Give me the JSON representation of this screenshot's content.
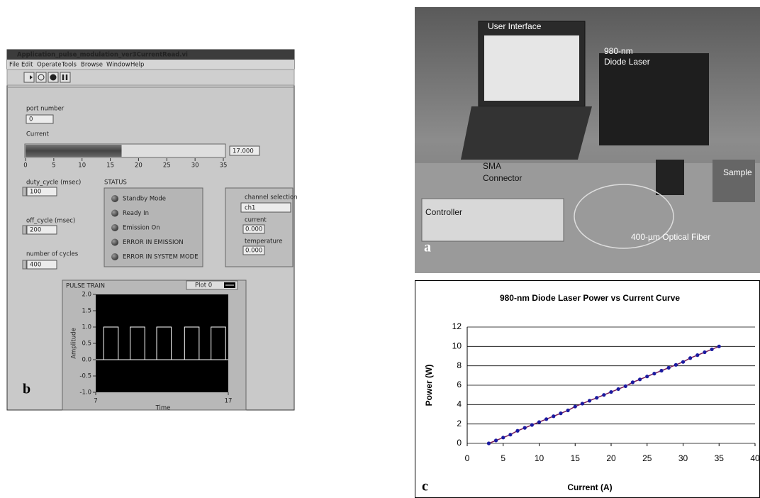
{
  "ui": {
    "window_title": "Application_pulse_modulation_ver3CurrentRead.vi",
    "menu": [
      "File",
      "Edit",
      "Operate",
      "Tools",
      "Browse",
      "Window",
      "Help"
    ],
    "port_number": {
      "label": "port number",
      "value": "0"
    },
    "current": {
      "label": "Current",
      "value": 17,
      "display": "17.000",
      "range": [
        0,
        35
      ],
      "ticks": [
        0,
        5,
        10,
        15,
        20,
        25,
        30,
        35
      ]
    },
    "duty_cycle": {
      "label": "duty_cycle (msec)",
      "value": "100"
    },
    "off_cycle": {
      "label": "off_cycle (msec)",
      "value": "200"
    },
    "number_of_cycles": {
      "label": "number of cycles",
      "value": "400"
    },
    "status": {
      "title": "STATUS",
      "items": [
        "Standby Mode",
        "Ready In",
        "Emission On",
        "ERROR IN EMISSION",
        "ERROR IN SYSTEM MODE"
      ]
    },
    "channel": {
      "label": "channel selection",
      "value": "ch1",
      "current_label": "current",
      "current_value": "0.000",
      "temperature_label": "temperature",
      "temperature_value": "0.000"
    },
    "panel_label": "b"
  },
  "photo": {
    "labels": [
      "User Interface",
      "980-nm",
      "Diode Laser",
      "SMA",
      "Connector",
      "Sample",
      "Controller",
      "400-µm Optical Fiber"
    ],
    "panel_label": "a"
  },
  "chart_data": [
    {
      "type": "line",
      "title": "980-nm Diode Laser Power vs Current Curve",
      "x_label": "Current (A)",
      "y_label": "Power (W)",
      "x": [
        3,
        4,
        5,
        6,
        7,
        8,
        9,
        10,
        11,
        12,
        13,
        14,
        15,
        16,
        17,
        18,
        19,
        20,
        21,
        22,
        23,
        24,
        25,
        26,
        27,
        28,
        29,
        30,
        31,
        32,
        33,
        34,
        35
      ],
      "values": [
        0,
        0.3,
        0.6,
        0.9,
        1.3,
        1.6,
        1.9,
        2.2,
        2.5,
        2.8,
        3.1,
        3.4,
        3.8,
        4.1,
        4.4,
        4.7,
        5,
        5.3,
        5.6,
        5.9,
        6.3,
        6.6,
        6.9,
        7.2,
        7.5,
        7.8,
        8.1,
        8.4,
        8.8,
        9.1,
        9.4,
        9.7,
        10
      ],
      "color": "#1a1aa0",
      "line_color": "#7a1f5a",
      "xlim": [
        0,
        40
      ],
      "xticks": [
        0,
        5,
        10,
        15,
        20,
        25,
        30,
        35,
        40
      ],
      "ylim": [
        0,
        12
      ],
      "yticks": [
        0,
        2,
        4,
        6,
        8,
        10,
        12
      ],
      "grid": true,
      "panel_label": "c"
    },
    {
      "type": "line",
      "title": "PULSE TRAIN",
      "x_label": "Time",
      "y_label": "Amplitude",
      "x": [
        7,
        7.6,
        7.6,
        8.7,
        8.7,
        9.6,
        9.6,
        10.7,
        10.7,
        11.6,
        11.6,
        12.7,
        12.7,
        13.7,
        13.7,
        14.8,
        14.8,
        15.7,
        15.7,
        16.8,
        16.8,
        17
      ],
      "series": [
        {
          "name": "Plot 0",
          "color": "#ffffff",
          "values": [
            0,
            0,
            1,
            1,
            0,
            0,
            1,
            1,
            0,
            0,
            1,
            1,
            0,
            0,
            1,
            1,
            0,
            0,
            1,
            1,
            0,
            0
          ]
        }
      ],
      "xlim": [
        7,
        17
      ],
      "xticks": [
        7,
        17
      ],
      "ylim": [
        -1,
        2
      ],
      "yticks": [
        {
          "value": 2,
          "label": "2.0"
        },
        {
          "value": 1.5,
          "label": "1.5"
        },
        {
          "value": 1,
          "label": "1.0"
        },
        {
          "value": 0.5,
          "label": "0.5"
        },
        {
          "value": 0,
          "label": "0.0"
        },
        {
          "value": -0.5,
          "label": "-0.5"
        },
        {
          "value": -1,
          "label": "-1.0"
        }
      ]
    }
  ]
}
